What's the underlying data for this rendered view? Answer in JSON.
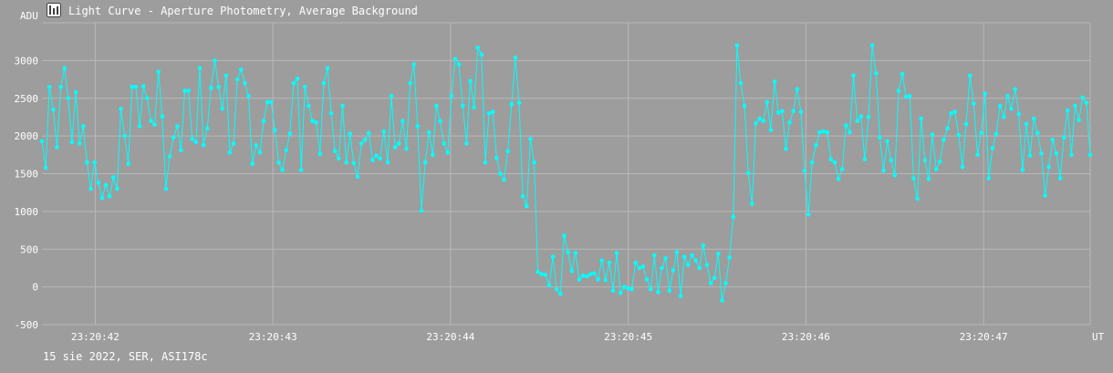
{
  "window": {
    "title": "Light Curve - Aperture Photometry, Average Background"
  },
  "footer": {
    "caption": "15 sie 2022, SER, ASI178c"
  },
  "colors": {
    "background": "#9d9d9d",
    "grid": "#b8b8b8",
    "series": "#00ffff",
    "text": "#ffffff"
  },
  "chart_data": {
    "type": "line",
    "title": "",
    "ylabel": "ADU",
    "xlabel": "UT",
    "ylim": [
      -500,
      3500
    ],
    "xlim": [
      0,
      5.9
    ],
    "yticks": [
      -500,
      0,
      500,
      1000,
      1500,
      2000,
      2500,
      3000
    ],
    "xticks": [
      {
        "value": 0.3,
        "label": "23:20:42"
      },
      {
        "value": 1.3,
        "label": "23:20:43"
      },
      {
        "value": 2.3,
        "label": "23:20:44"
      },
      {
        "value": 3.3,
        "label": "23:20:45"
      },
      {
        "value": 4.3,
        "label": "23:20:46"
      },
      {
        "value": 5.3,
        "label": "23:20:47"
      }
    ],
    "grid": true,
    "legend": "none",
    "series": [
      {
        "marker": "circle",
        "values": [
          1930,
          1580,
          2650,
          2350,
          1850,
          2650,
          2900,
          2500,
          1920,
          2580,
          1900,
          2130,
          1650,
          1300,
          1650,
          1380,
          1180,
          1350,
          1200,
          1450,
          1300,
          2360,
          2000,
          1630,
          2650,
          2650,
          2130,
          2660,
          2500,
          2200,
          2150,
          2850,
          2260,
          1300,
          1730,
          1980,
          2130,
          1810,
          2600,
          2600,
          1960,
          1920,
          2900,
          1880,
          2100,
          2640,
          3000,
          2650,
          2360,
          2800,
          1780,
          1900,
          2750,
          2880,
          2700,
          2530,
          1630,
          1880,
          1780,
          2200,
          2450,
          2450,
          2080,
          1650,
          1550,
          1810,
          2030,
          2700,
          2760,
          1550,
          2650,
          2400,
          2200,
          2180,
          1760,
          2700,
          2900,
          2300,
          1800,
          1700,
          2400,
          1650,
          2030,
          1640,
          1460,
          1900,
          1950,
          2040,
          1680,
          1740,
          1700,
          2060,
          1650,
          2530,
          1850,
          1900,
          2200,
          1830,
          2700,
          2950,
          2130,
          1010,
          1650,
          2050,
          1750,
          2400,
          2200,
          1900,
          1780,
          2530,
          3020,
          2950,
          2400,
          1900,
          2730,
          2380,
          3170,
          3080,
          1650,
          2300,
          2320,
          1710,
          1500,
          1420,
          1800,
          2420,
          3040,
          2440,
          1200,
          1070,
          1960,
          1650,
          200,
          170,
          160,
          20,
          400,
          -30,
          -90,
          680,
          460,
          210,
          450,
          100,
          150,
          140,
          170,
          180,
          100,
          350,
          90,
          320,
          -50,
          450,
          -80,
          0,
          -20,
          -30,
          320,
          250,
          270,
          100,
          -30,
          420,
          -70,
          250,
          380,
          -50,
          220,
          460,
          -120,
          400,
          290,
          420,
          350,
          250,
          550,
          290,
          50,
          120,
          440,
          -180,
          50,
          390,
          930,
          3200,
          2700,
          2400,
          1510,
          1100,
          2170,
          2230,
          2200,
          2450,
          2080,
          2720,
          2310,
          2330,
          1830,
          2180,
          2330,
          2620,
          2320,
          1540,
          960,
          1650,
          1880,
          2050,
          2060,
          2050,
          1690,
          1650,
          1430,
          1560,
          2140,
          2050,
          2800,
          2200,
          2260,
          1690,
          2250,
          3200,
          2830,
          1980,
          1540,
          1930,
          1680,
          1480,
          2600,
          2820,
          2520,
          2530,
          1440,
          1170,
          2230,
          1680,
          1430,
          2020,
          1560,
          1660,
          1950,
          2100,
          2300,
          2320,
          2010,
          1590,
          2160,
          2800,
          2430,
          1750,
          2040,
          2560,
          1440,
          1840,
          2030,
          2400,
          2250,
          2530,
          2360,
          2620,
          2290,
          1550,
          2160,
          1740,
          2230,
          2040,
          1770,
          1210,
          1590,
          1950,
          1770,
          1440,
          1980,
          2340,
          1750,
          2400,
          2210,
          2510,
          2440,
          1750
        ]
      }
    ]
  }
}
